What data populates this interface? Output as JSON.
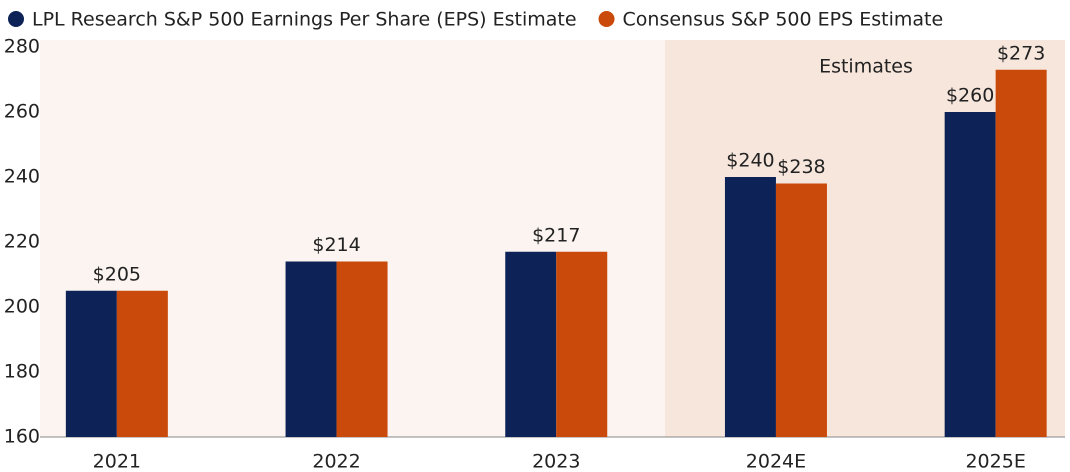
{
  "chart_data": {
    "type": "bar",
    "categories": [
      "2021",
      "2022",
      "2023",
      "2024E",
      "2025E"
    ],
    "series": [
      {
        "name": "LPL Research S&P 500 Earnings Per Share (EPS) Estimate",
        "color": "#0d2357",
        "values": [
          205,
          214,
          217,
          240,
          260
        ],
        "value_labels": [
          "$205",
          "$214",
          "$217",
          "$240",
          "$260"
        ]
      },
      {
        "name": "Consensus S&P 500 EPS Estimate",
        "color": "#c94a0a",
        "values": [
          205,
          214,
          217,
          238,
          273
        ],
        "value_labels": [
          null,
          null,
          null,
          "$238",
          "$273"
        ]
      }
    ],
    "ylim": [
      160,
      280
    ],
    "yticks": [
      160,
      180,
      200,
      220,
      240,
      260,
      280
    ],
    "annotation": "Estimates",
    "grid": false,
    "legend": "top"
  }
}
